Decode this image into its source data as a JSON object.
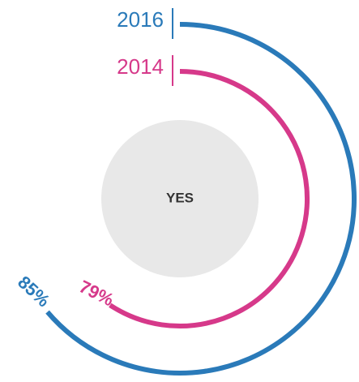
{
  "chart_data": {
    "type": "radial_bar",
    "center_label": "YES",
    "ylim": [
      0,
      100
    ],
    "series": [
      {
        "name": "2016",
        "color": "#2a7ab9",
        "values": [
          85
        ],
        "value_labels": [
          "85%"
        ]
      },
      {
        "name": "2014",
        "color": "#d6398a",
        "values": [
          79
        ],
        "value_labels": [
          "79%"
        ]
      }
    ]
  }
}
